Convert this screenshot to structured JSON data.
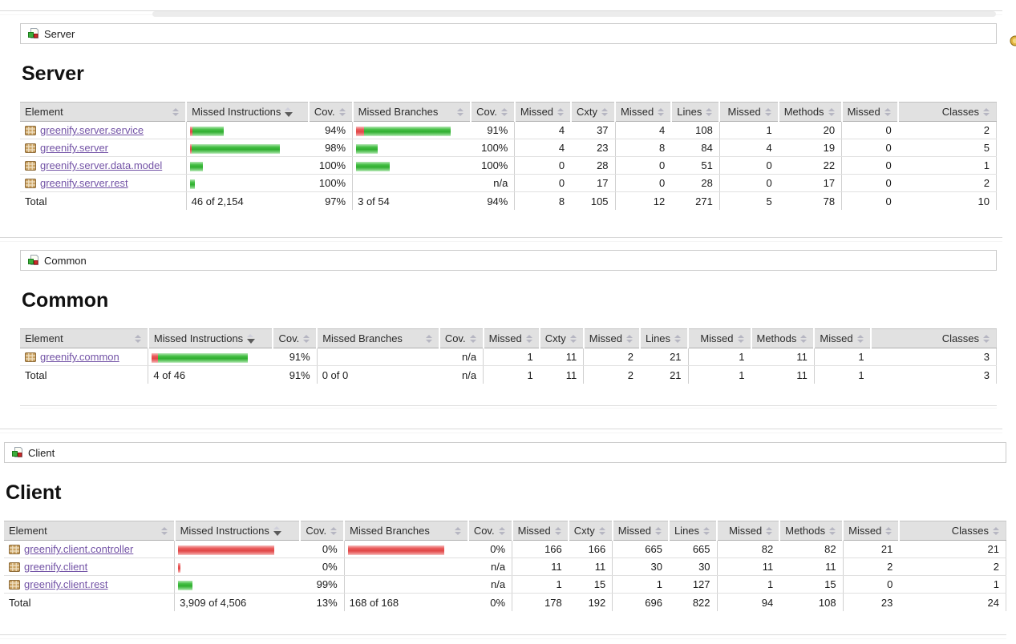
{
  "icons": {
    "breadcrumb_icon": "package-report-icon",
    "row_icon": "package-icon",
    "right_edge_icon": "session-icon",
    "sort_icon": "sort-arrows-icon"
  },
  "colors": {
    "bar_green": "#2fae2f",
    "bar_red": "#e14646",
    "link": "#7353a6",
    "header_bg": "#e1e1e1"
  },
  "table_headers": [
    {
      "label": "Element",
      "sort": "both"
    },
    {
      "label": "Missed Instructions",
      "sort": "desc"
    },
    {
      "label": "Cov.",
      "sort": "both"
    },
    {
      "label": "Missed Branches",
      "sort": "both"
    },
    {
      "label": "Cov.",
      "sort": "both"
    },
    {
      "label": "Missed",
      "sort": "both"
    },
    {
      "label": "Cxty",
      "sort": "both"
    },
    {
      "label": "Missed",
      "sort": "both"
    },
    {
      "label": "Lines",
      "sort": "both"
    },
    {
      "label": "Missed",
      "sort": "both"
    },
    {
      "label": "Methods",
      "sort": "both"
    },
    {
      "label": "Missed",
      "sort": "both"
    },
    {
      "label": "Classes",
      "sort": "both"
    }
  ],
  "sections": [
    {
      "breadcrumb": "Server",
      "title": "Server",
      "rows": [
        {
          "element": "greenify.server.service",
          "instr_bar": [
            [
              "red",
              3
            ],
            [
              "green",
              39
            ]
          ],
          "instr_cov": "94%",
          "branch_bar": [
            [
              "red",
              10
            ],
            [
              "green",
              108
            ]
          ],
          "branch_cov": "91%",
          "counters": [
            "4",
            "37",
            "4",
            "108",
            "1",
            "20",
            "0",
            "2"
          ]
        },
        {
          "element": "greenify.server",
          "instr_bar": [
            [
              "red",
              2
            ],
            [
              "green",
              110
            ]
          ],
          "instr_cov": "98%",
          "branch_bar": [
            [
              "green",
              27
            ]
          ],
          "branch_cov": "100%",
          "counters": [
            "4",
            "23",
            "8",
            "84",
            "4",
            "19",
            "0",
            "5"
          ]
        },
        {
          "element": "greenify.server.data.model",
          "instr_bar": [
            [
              "green",
              16
            ]
          ],
          "instr_cov": "100%",
          "branch_bar": [
            [
              "green",
              42
            ]
          ],
          "branch_cov": "100%",
          "counters": [
            "0",
            "28",
            "0",
            "51",
            "0",
            "22",
            "0",
            "1"
          ]
        },
        {
          "element": "greenify.server.rest",
          "instr_bar": [
            [
              "green",
              6
            ]
          ],
          "instr_cov": "100%",
          "branch_bar": [],
          "branch_cov": "n/a",
          "counters": [
            "0",
            "17",
            "0",
            "28",
            "0",
            "17",
            "0",
            "2"
          ]
        }
      ],
      "total": {
        "label": "Total",
        "instr": "46 of 2,154",
        "instr_cov": "97%",
        "branch": "3 of 54",
        "branch_cov": "94%",
        "counters": [
          "8",
          "105",
          "12",
          "271",
          "5",
          "78",
          "0",
          "10"
        ]
      }
    },
    {
      "breadcrumb": "Common",
      "title": "Common",
      "rows": [
        {
          "element": "greenify.common",
          "instr_bar": [
            [
              "red",
              8
            ],
            [
              "green",
              112
            ]
          ],
          "instr_cov": "91%",
          "branch_bar": [],
          "branch_cov": "n/a",
          "counters": [
            "1",
            "11",
            "2",
            "21",
            "1",
            "11",
            "1",
            "3"
          ]
        }
      ],
      "total": {
        "label": "Total",
        "instr": "4 of 46",
        "instr_cov": "91%",
        "branch": "0 of 0",
        "branch_cov": "n/a",
        "counters": [
          "1",
          "11",
          "2",
          "21",
          "1",
          "11",
          "1",
          "3"
        ]
      }
    },
    {
      "breadcrumb": "Client",
      "title": "Client",
      "rows": [
        {
          "element": "greenify.client.controller",
          "instr_bar": [
            [
              "red",
              120
            ]
          ],
          "instr_cov": "0%",
          "branch_bar": [
            [
              "red",
              120
            ]
          ],
          "branch_cov": "0%",
          "counters": [
            "166",
            "166",
            "665",
            "665",
            "82",
            "82",
            "21",
            "21"
          ]
        },
        {
          "element": "greenify.client",
          "instr_bar": [
            [
              "red",
              3
            ]
          ],
          "instr_cov": "0%",
          "branch_bar": [],
          "branch_cov": "n/a",
          "counters": [
            "11",
            "11",
            "30",
            "30",
            "11",
            "11",
            "2",
            "2"
          ]
        },
        {
          "element": "greenify.client.rest",
          "instr_bar": [
            [
              "green",
              18
            ]
          ],
          "instr_cov": "99%",
          "branch_bar": [],
          "branch_cov": "n/a",
          "counters": [
            "1",
            "15",
            "1",
            "127",
            "1",
            "15",
            "0",
            "1"
          ]
        }
      ],
      "total": {
        "label": "Total",
        "instr": "3,909 of 4,506",
        "instr_cov": "13%",
        "branch": "168 of 168",
        "branch_cov": "0%",
        "counters": [
          "178",
          "192",
          "696",
          "822",
          "94",
          "108",
          "23",
          "24"
        ]
      }
    }
  ]
}
